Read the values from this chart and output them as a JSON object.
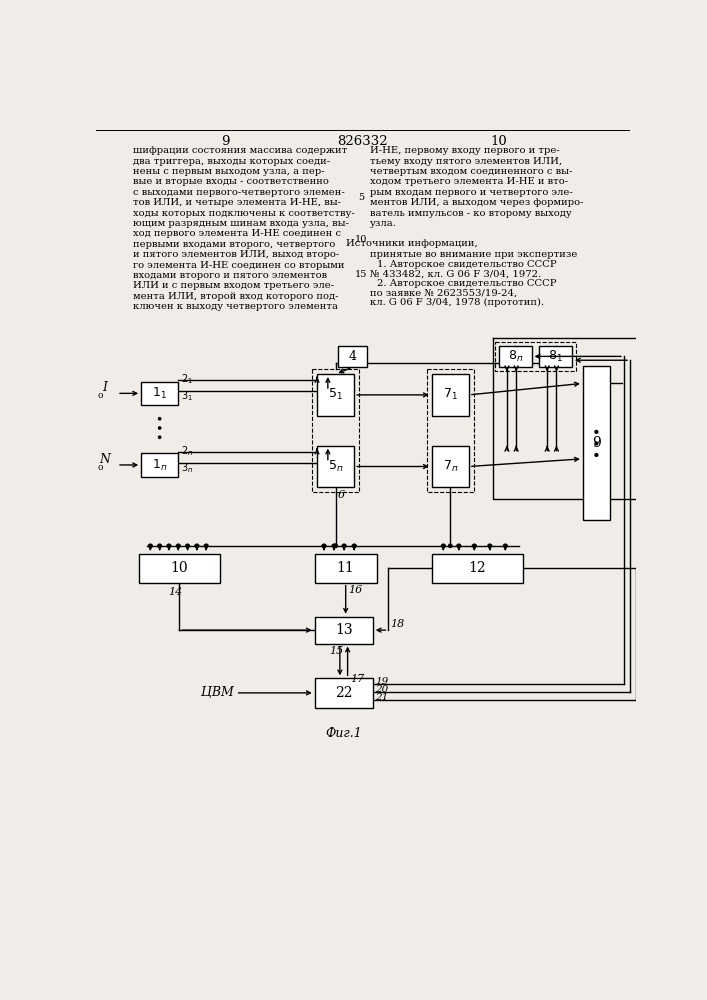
{
  "page_num_left": "9",
  "page_num_center": "826332",
  "page_num_right": "10",
  "line_nums": [
    "5",
    "10",
    "15"
  ],
  "text_left": "шифрации состояния массива содержит\nдва триггера, выходы которых соеди-\nнены с первым выходом узла, а пер-\nвые и вторые входы - соответственно\nс выходами первого-четвертого элемен-\nтов ИЛИ, и четыре элемента И-НЕ, вы-\nходы которых подключены к соответству-\nющим разрядным шинам входа узла, вы-\nход первого элемента И-НЕ соединен с\nпервыми входами второго, четвертого\nи пятого элементов ИЛИ, выход второ-\nго элемента И-НЕ соединен со вторыми\nвходами второго и пятого элементов\nИЛИ и с первым входом третьего эле-\nмента ИЛИ, второй вход которого под-\nключен к выходу четвертого элемента",
  "text_right": "И-НЕ, первому входу первого и тре-\nтьему входу пятого элементов ИЛИ,\nчетвертым входом соединенного с вы-\nходом третьего элемента И-НЕ и вто-\nрым входам первого и четвертого эле-\nментов ИЛИ, а выходом через формиро-\nватель импульсов - ко второму выходу\nузла.",
  "sources_header": "Источники информации,",
  "sources_sub": "принятые во внимание при экспертизе",
  "source1a": "1. Авторское свидетельство СССР",
  "source1b": "№ 433482, кл. G 06 F 3/04, 1972.",
  "source2a": "2. Авторское свидетельство СССР",
  "source2b": "по заявке № 2623553/19-24,",
  "source2c": "кл. G 06 F 3/04, 1978 (прототип).",
  "fig_label": "Фиг.1",
  "bg": "#f0ede8",
  "lw": 1.0,
  "lw_thin": 0.8
}
